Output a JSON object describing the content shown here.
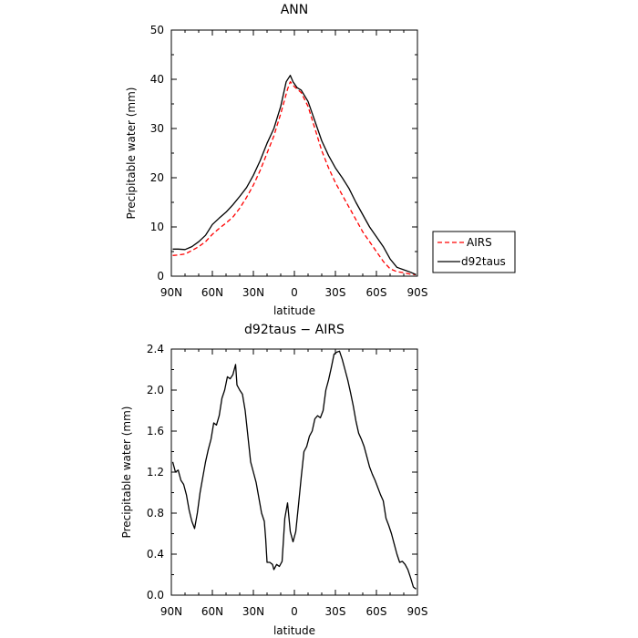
{
  "chart_data": [
    {
      "type": "line",
      "title": "ANN",
      "xlabel": "latitude",
      "ylabel": "Precipitable water (mm)",
      "xlim": [
        90,
        -90
      ],
      "ylim": [
        0,
        50
      ],
      "x_tick_values": [
        90,
        60,
        30,
        0,
        -30,
        -60,
        -90
      ],
      "x_tick_labels": [
        "90N",
        "60N",
        "30N",
        "0",
        "30S",
        "60S",
        "90S"
      ],
      "y_ticks": [
        0,
        10,
        20,
        30,
        40,
        50
      ],
      "legend": "right",
      "series": [
        {
          "name": "AIRS",
          "color": "#ff0000",
          "dash": "dashed",
          "points": [
            [
              89,
              4.2
            ],
            [
              85,
              4.3
            ],
            [
              80,
              4.5
            ],
            [
              75,
              5.2
            ],
            [
              70,
              6.0
            ],
            [
              65,
              7.0
            ],
            [
              60,
              8.5
            ],
            [
              55,
              9.7
            ],
            [
              50,
              10.8
            ],
            [
              45,
              12.0
            ],
            [
              40,
              13.8
            ],
            [
              35,
              16.0
            ],
            [
              30,
              18.5
            ],
            [
              25,
              21.5
            ],
            [
              20,
              25.0
            ],
            [
              15,
              28.5
            ],
            [
              10,
              33.0
            ],
            [
              5,
              38.0
            ],
            [
              3,
              39.5
            ],
            [
              0,
              38.5
            ],
            [
              -5,
              37.3
            ],
            [
              -10,
              34.5
            ],
            [
              -15,
              30.0
            ],
            [
              -20,
              25.5
            ],
            [
              -25,
              22.0
            ],
            [
              -30,
              19.0
            ],
            [
              -35,
              16.5
            ],
            [
              -40,
              14.0
            ],
            [
              -45,
              11.5
            ],
            [
              -50,
              9.0
            ],
            [
              -55,
              7.0
            ],
            [
              -60,
              5.0
            ],
            [
              -65,
              3.0
            ],
            [
              -70,
              1.5
            ],
            [
              -75,
              0.9
            ],
            [
              -80,
              0.7
            ],
            [
              -85,
              0.4
            ],
            [
              -89,
              0.3
            ]
          ]
        },
        {
          "name": "d92taus",
          "color": "#000000",
          "dash": "solid",
          "points": [
            [
              89,
              5.5
            ],
            [
              85,
              5.5
            ],
            [
              80,
              5.4
            ],
            [
              75,
              6.0
            ],
            [
              70,
              7.0
            ],
            [
              65,
              8.3
            ],
            [
              60,
              10.5
            ],
            [
              55,
              11.8
            ],
            [
              50,
              13.0
            ],
            [
              45,
              14.5
            ],
            [
              40,
              16.2
            ],
            [
              35,
              18.0
            ],
            [
              30,
              20.5
            ],
            [
              25,
              23.5
            ],
            [
              20,
              27.0
            ],
            [
              15,
              30.0
            ],
            [
              10,
              34.5
            ],
            [
              6,
              39.5
            ],
            [
              3,
              40.8
            ],
            [
              1,
              39.5
            ],
            [
              -2,
              38.3
            ],
            [
              -5,
              37.8
            ],
            [
              -10,
              35.5
            ],
            [
              -15,
              31.5
            ],
            [
              -20,
              27.5
            ],
            [
              -25,
              24.5
            ],
            [
              -30,
              22.0
            ],
            [
              -35,
              20.0
            ],
            [
              -40,
              17.8
            ],
            [
              -45,
              15.0
            ],
            [
              -50,
              12.5
            ],
            [
              -55,
              10.0
            ],
            [
              -60,
              8.0
            ],
            [
              -65,
              6.0
            ],
            [
              -70,
              3.5
            ],
            [
              -75,
              1.8
            ],
            [
              -80,
              1.3
            ],
            [
              -85,
              0.8
            ],
            [
              -89,
              0.3
            ]
          ]
        }
      ]
    },
    {
      "type": "line",
      "title": "d92taus − AIRS",
      "xlabel": "latitude",
      "ylabel": "Precipitable water (mm)",
      "xlim": [
        90,
        -90
      ],
      "ylim": [
        0,
        2.4
      ],
      "x_tick_values": [
        90,
        60,
        30,
        0,
        -30,
        -60,
        -90
      ],
      "x_tick_labels": [
        "90N",
        "60N",
        "30N",
        "0",
        "30S",
        "60S",
        "90S"
      ],
      "y_ticks": [
        0.0,
        0.4,
        0.8,
        1.2,
        1.6,
        2.0,
        2.4
      ],
      "y_tick_labels": [
        "0.0",
        "0.4",
        "0.8",
        "1.2",
        "1.6",
        "2.0",
        "2.4"
      ],
      "series": [
        {
          "color": "#000000",
          "dash": "solid",
          "points": [
            [
              89,
              1.3
            ],
            [
              87,
              1.2
            ],
            [
              85,
              1.22
            ],
            [
              83,
              1.12
            ],
            [
              81,
              1.08
            ],
            [
              79,
              0.98
            ],
            [
              77,
              0.83
            ],
            [
              75,
              0.72
            ],
            [
              73,
              0.65
            ],
            [
              71,
              0.8
            ],
            [
              69,
              1.0
            ],
            [
              67,
              1.15
            ],
            [
              65,
              1.3
            ],
            [
              63,
              1.42
            ],
            [
              61,
              1.52
            ],
            [
              59,
              1.68
            ],
            [
              57,
              1.66
            ],
            [
              55,
              1.75
            ],
            [
              53,
              1.92
            ],
            [
              51,
              2.0
            ],
            [
              49,
              2.13
            ],
            [
              47,
              2.11
            ],
            [
              45,
              2.15
            ],
            [
              43,
              2.25
            ],
            [
              42,
              2.05
            ],
            [
              40,
              2.0
            ],
            [
              38,
              1.96
            ],
            [
              36,
              1.8
            ],
            [
              34,
              1.55
            ],
            [
              32,
              1.3
            ],
            [
              30,
              1.2
            ],
            [
              28,
              1.1
            ],
            [
              26,
              0.95
            ],
            [
              24,
              0.8
            ],
            [
              22,
              0.72
            ],
            [
              21,
              0.55
            ],
            [
              20,
              0.32
            ],
            [
              18,
              0.32
            ],
            [
              16,
              0.3
            ],
            [
              15,
              0.25
            ],
            [
              13,
              0.3
            ],
            [
              11,
              0.28
            ],
            [
              9,
              0.33
            ],
            [
              7,
              0.75
            ],
            [
              5,
              0.9
            ],
            [
              3,
              0.62
            ],
            [
              1,
              0.52
            ],
            [
              -1,
              0.62
            ],
            [
              -3,
              0.88
            ],
            [
              -5,
              1.15
            ],
            [
              -7,
              1.4
            ],
            [
              -9,
              1.45
            ],
            [
              -11,
              1.55
            ],
            [
              -13,
              1.6
            ],
            [
              -15,
              1.72
            ],
            [
              -17,
              1.75
            ],
            [
              -19,
              1.73
            ],
            [
              -21,
              1.8
            ],
            [
              -23,
              2.0
            ],
            [
              -25,
              2.1
            ],
            [
              -27,
              2.22
            ],
            [
              -29,
              2.35
            ],
            [
              -31,
              2.37
            ],
            [
              -33,
              2.38
            ],
            [
              -35,
              2.3
            ],
            [
              -37,
              2.2
            ],
            [
              -39,
              2.1
            ],
            [
              -41,
              1.98
            ],
            [
              -43,
              1.85
            ],
            [
              -45,
              1.7
            ],
            [
              -47,
              1.58
            ],
            [
              -49,
              1.52
            ],
            [
              -51,
              1.45
            ],
            [
              -53,
              1.35
            ],
            [
              -55,
              1.25
            ],
            [
              -57,
              1.18
            ],
            [
              -59,
              1.12
            ],
            [
              -61,
              1.05
            ],
            [
              -63,
              0.98
            ],
            [
              -65,
              0.92
            ],
            [
              -67,
              0.75
            ],
            [
              -69,
              0.68
            ],
            [
              -71,
              0.6
            ],
            [
              -73,
              0.5
            ],
            [
              -75,
              0.4
            ],
            [
              -77,
              0.32
            ],
            [
              -79,
              0.33
            ],
            [
              -81,
              0.3
            ],
            [
              -83,
              0.25
            ],
            [
              -85,
              0.17
            ],
            [
              -87,
              0.08
            ],
            [
              -89,
              0.06
            ]
          ]
        }
      ]
    }
  ]
}
